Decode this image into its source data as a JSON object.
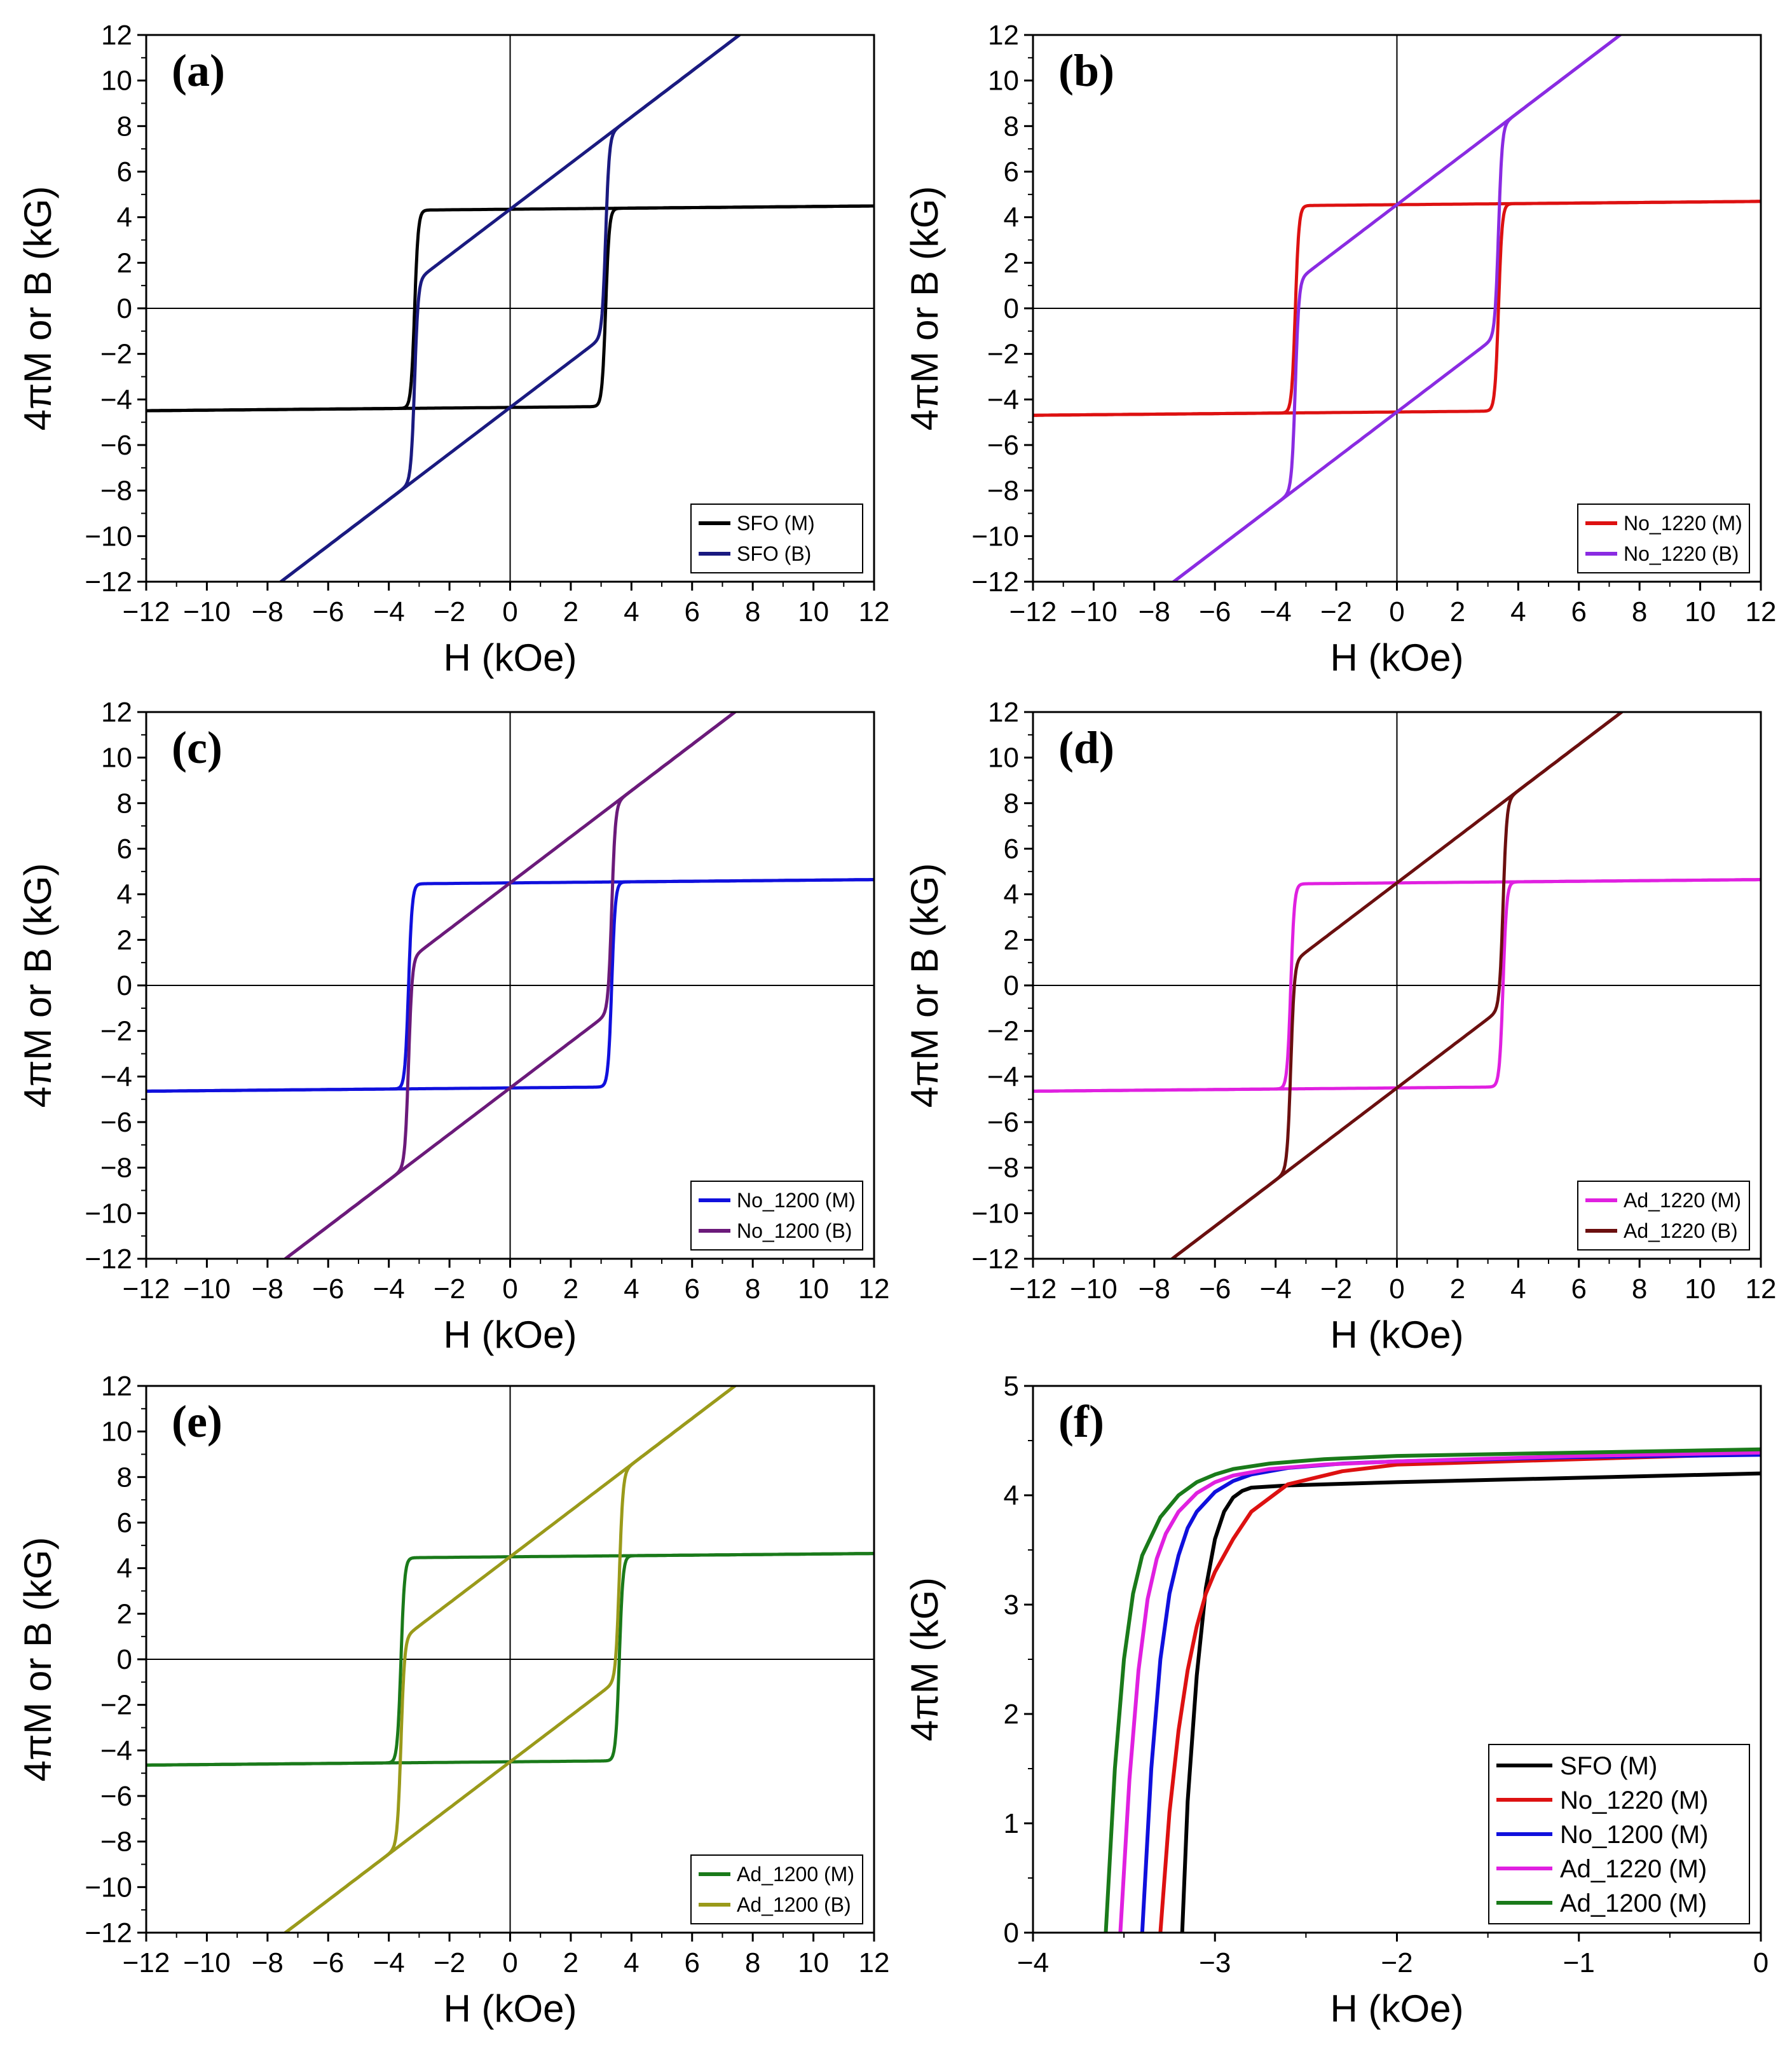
{
  "figure": {
    "xlabel_common": "H (kOe)"
  },
  "chart_data": [
    {
      "id": "a",
      "type": "line",
      "panel_label": "(a)",
      "xlabel": "H (kOe)",
      "ylabel": "4πM or B (kG)",
      "xlim": [
        -12,
        12
      ],
      "ylim": [
        -12,
        12
      ],
      "xticks": [
        -12,
        -10,
        -8,
        -6,
        -4,
        -2,
        0,
        2,
        4,
        6,
        8,
        10,
        12
      ],
      "yticks": [
        -12,
        -10,
        -8,
        -6,
        -4,
        -2,
        0,
        2,
        4,
        6,
        8,
        10,
        12
      ],
      "legend_position": "bottom-right",
      "series": [
        {
          "name": "SFO (M)",
          "kind": "M",
          "color": "#000000",
          "Ms": 4.35,
          "Hc": 3.15,
          "Mr": 4.15
        },
        {
          "name": "SFO (B)",
          "kind": "B",
          "color": "#1a1a80",
          "Ms": 4.35,
          "Hc": 3.15,
          "Mr": 4.15
        }
      ]
    },
    {
      "id": "b",
      "type": "line",
      "panel_label": "(b)",
      "xlabel": "H (kOe)",
      "ylabel": "4πM or B (kG)",
      "xlim": [
        -12,
        12
      ],
      "ylim": [
        -12,
        12
      ],
      "xticks": [
        -12,
        -10,
        -8,
        -6,
        -4,
        -2,
        0,
        2,
        4,
        6,
        8,
        10,
        12
      ],
      "yticks": [
        -12,
        -10,
        -8,
        -6,
        -4,
        -2,
        0,
        2,
        4,
        6,
        8,
        10,
        12
      ],
      "legend_position": "bottom-right",
      "series": [
        {
          "name": "No_1220 (M)",
          "kind": "M",
          "color": "#dd1111",
          "Ms": 4.55,
          "Hc": 3.35,
          "Mr": 4.3
        },
        {
          "name": "No_1220 (B)",
          "kind": "B",
          "color": "#8a2be2",
          "Ms": 4.55,
          "Hc": 3.35,
          "Mr": 4.3
        }
      ]
    },
    {
      "id": "c",
      "type": "line",
      "panel_label": "(c)",
      "xlabel": "H (kOe)",
      "ylabel": "4πM or B (kG)",
      "xlim": [
        -12,
        12
      ],
      "ylim": [
        -12,
        12
      ],
      "xticks": [
        -12,
        -10,
        -8,
        -6,
        -4,
        -2,
        0,
        2,
        4,
        6,
        8,
        10,
        12
      ],
      "yticks": [
        -12,
        -10,
        -8,
        -6,
        -4,
        -2,
        0,
        2,
        4,
        6,
        8,
        10,
        12
      ],
      "legend_position": "bottom-right",
      "series": [
        {
          "name": "No_1200 (M)",
          "kind": "M",
          "color": "#1010dd",
          "Ms": 4.5,
          "Hc": 3.35,
          "Mr": 4.35
        },
        {
          "name": "No_1200 (B)",
          "kind": "B",
          "color": "#6b1a7a",
          "Ms": 4.5,
          "Hc": 3.35,
          "Mr": 4.35
        }
      ]
    },
    {
      "id": "d",
      "type": "line",
      "panel_label": "(d)",
      "xlabel": "H (kOe)",
      "ylabel": "4πM or B (kG)",
      "xlim": [
        -12,
        12
      ],
      "ylim": [
        -12,
        12
      ],
      "xticks": [
        -12,
        -10,
        -8,
        -6,
        -4,
        -2,
        0,
        2,
        4,
        6,
        8,
        10,
        12
      ],
      "yticks": [
        -12,
        -10,
        -8,
        -6,
        -4,
        -2,
        0,
        2,
        4,
        6,
        8,
        10,
        12
      ],
      "legend_position": "bottom-right",
      "series": [
        {
          "name": "Ad_1220 (M)",
          "kind": "M",
          "color": "#e020e0",
          "Ms": 4.5,
          "Hc": 3.5,
          "Mr": 4.35
        },
        {
          "name": "Ad_1220 (B)",
          "kind": "B",
          "color": "#6b0f0f",
          "Ms": 4.5,
          "Hc": 3.5,
          "Mr": 4.35
        }
      ]
    },
    {
      "id": "e",
      "type": "line",
      "panel_label": "(e)",
      "xlabel": "H (kOe)",
      "ylabel": "4πM or B (kG)",
      "xlim": [
        -12,
        12
      ],
      "ylim": [
        -12,
        12
      ],
      "xticks": [
        -12,
        -10,
        -8,
        -6,
        -4,
        -2,
        0,
        2,
        4,
        6,
        8,
        10,
        12
      ],
      "yticks": [
        -12,
        -10,
        -8,
        -6,
        -4,
        -2,
        0,
        2,
        4,
        6,
        8,
        10,
        12
      ],
      "legend_position": "bottom-right",
      "series": [
        {
          "name": "Ad_1200 (M)",
          "kind": "M",
          "color": "#1a7a1a",
          "Ms": 4.5,
          "Hc": 3.6,
          "Mr": 4.38
        },
        {
          "name": "Ad_1200 (B)",
          "kind": "B",
          "color": "#9a9a1a",
          "Ms": 4.5,
          "Hc": 3.6,
          "Mr": 4.38
        }
      ]
    },
    {
      "id": "f",
      "type": "line",
      "panel_label": "(f)",
      "xlabel": "H (kOe)",
      "ylabel": "4πM (kG)",
      "xlim": [
        -4,
        0
      ],
      "ylim": [
        0,
        5
      ],
      "xticks": [
        -4,
        -3,
        -2,
        -1,
        0
      ],
      "yticks": [
        0,
        1,
        2,
        3,
        4,
        5
      ],
      "legend_position": "bottom-right",
      "series": [
        {
          "name": "SFO (M)",
          "color": "#000000",
          "x": [
            -3.18,
            -3.15,
            -3.1,
            -3.05,
            -3.0,
            -2.95,
            -2.9,
            -2.85,
            -2.8,
            -2.6,
            -2.0,
            -1.0,
            0.0
          ],
          "y": [
            0.0,
            1.2,
            2.35,
            3.15,
            3.6,
            3.85,
            3.98,
            4.04,
            4.07,
            4.09,
            4.12,
            4.16,
            4.2
          ]
        },
        {
          "name": "No_1220 (M)",
          "color": "#dd1111",
          "x": [
            -3.3,
            -3.25,
            -3.2,
            -3.15,
            -3.1,
            -3.05,
            -3.0,
            -2.9,
            -2.8,
            -2.6,
            -2.3,
            -2.0,
            -1.0,
            0.0
          ],
          "y": [
            0.0,
            1.1,
            1.85,
            2.4,
            2.8,
            3.1,
            3.3,
            3.6,
            3.85,
            4.1,
            4.22,
            4.28,
            4.33,
            4.38
          ]
        },
        {
          "name": "No_1200 (M)",
          "color": "#1010dd",
          "x": [
            -3.4,
            -3.35,
            -3.3,
            -3.25,
            -3.2,
            -3.15,
            -3.1,
            -3.0,
            -2.9,
            -2.8,
            -2.6,
            -2.3,
            -2.0,
            -1.0,
            0.0
          ],
          "y": [
            0.0,
            1.5,
            2.5,
            3.1,
            3.45,
            3.7,
            3.85,
            4.03,
            4.13,
            4.19,
            4.25,
            4.29,
            4.31,
            4.35,
            4.37
          ]
        },
        {
          "name": "Ad_1220 (M)",
          "color": "#e020e0",
          "x": [
            -3.52,
            -3.47,
            -3.42,
            -3.37,
            -3.32,
            -3.27,
            -3.2,
            -3.1,
            -3.0,
            -2.9,
            -2.7,
            -2.4,
            -2.0,
            -1.0,
            0.0
          ],
          "y": [
            0.0,
            1.4,
            2.4,
            3.05,
            3.42,
            3.65,
            3.85,
            4.02,
            4.12,
            4.18,
            4.24,
            4.28,
            4.31,
            4.36,
            4.39
          ]
        },
        {
          "name": "Ad_1200 (M)",
          "color": "#1a7a1a",
          "x": [
            -3.6,
            -3.55,
            -3.5,
            -3.45,
            -3.4,
            -3.3,
            -3.2,
            -3.1,
            -3.0,
            -2.9,
            -2.7,
            -2.4,
            -2.0,
            -1.0,
            0.0
          ],
          "y": [
            0.0,
            1.5,
            2.5,
            3.1,
            3.45,
            3.8,
            4.0,
            4.12,
            4.19,
            4.24,
            4.29,
            4.33,
            4.36,
            4.39,
            4.42
          ]
        }
      ]
    }
  ]
}
